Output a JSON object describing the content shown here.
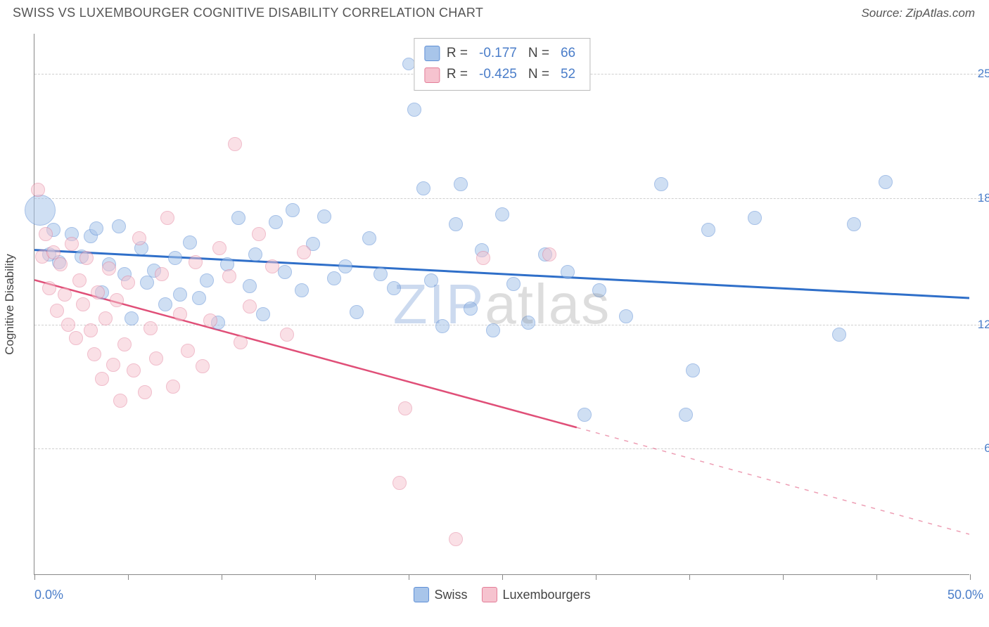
{
  "header": {
    "title": "SWISS VS LUXEMBOURGER COGNITIVE DISABILITY CORRELATION CHART",
    "source": "Source: ZipAtlas.com"
  },
  "watermark": {
    "part1": "ZIP",
    "part2": "atlas"
  },
  "chart": {
    "type": "scatter",
    "background_color": "#ffffff",
    "grid_color": "#cfcfcf",
    "axis_color": "#888888",
    "text_color": "#555555",
    "value_color": "#4a7dc9",
    "ylabel": "Cognitive Disability",
    "ylabel_fontsize": 17,
    "xlim": [
      0,
      50
    ],
    "ylim": [
      0,
      27
    ],
    "y_ticks": [
      {
        "value": 6.3,
        "label": "6.3%"
      },
      {
        "value": 12.5,
        "label": "12.5%"
      },
      {
        "value": 18.8,
        "label": "18.8%"
      },
      {
        "value": 25.0,
        "label": "25.0%"
      }
    ],
    "x_ticks_at": [
      0,
      5,
      10,
      15,
      20,
      25,
      30,
      35,
      40,
      45,
      50
    ],
    "x_label_min": "0.0%",
    "x_label_max": "50.0%",
    "legend_bottom": [
      {
        "label": "Swiss",
        "fill": "#a8c5ea",
        "stroke": "#5f8fd6"
      },
      {
        "label": "Luxembourgers",
        "fill": "#f6c3cf",
        "stroke": "#e37d98"
      }
    ],
    "legend_top": [
      {
        "fill": "#a8c5ea",
        "stroke": "#5f8fd6",
        "R_label": "R =",
        "R": "-0.177",
        "N_label": "N =",
        "N": "66"
      },
      {
        "fill": "#f6c3cf",
        "stroke": "#e37d98",
        "R_label": "R =",
        "R": "-0.425",
        "N_label": "N =",
        "N": "52"
      }
    ],
    "series": [
      {
        "name": "Swiss",
        "fill": "#a8c5ea",
        "fill_opacity": 0.55,
        "stroke": "#5f8fd6",
        "stroke_width": 1.5,
        "default_r": 10,
        "trend": {
          "x1": 0,
          "y1": 16.2,
          "x2": 50,
          "y2": 13.8,
          "color": "#2f6fc9",
          "width": 3,
          "solid_until_x": 50
        },
        "points": [
          {
            "x": 0.3,
            "y": 18.2,
            "r": 22
          },
          {
            "x": 0.8,
            "y": 16.0
          },
          {
            "x": 1.0,
            "y": 17.2
          },
          {
            "x": 1.3,
            "y": 15.6
          },
          {
            "x": 2.0,
            "y": 17.0
          },
          {
            "x": 2.5,
            "y": 15.9
          },
          {
            "x": 3.0,
            "y": 16.9
          },
          {
            "x": 3.3,
            "y": 17.3
          },
          {
            "x": 3.6,
            "y": 14.1
          },
          {
            "x": 4.0,
            "y": 15.5
          },
          {
            "x": 4.5,
            "y": 17.4
          },
          {
            "x": 4.8,
            "y": 15.0
          },
          {
            "x": 5.2,
            "y": 12.8
          },
          {
            "x": 5.7,
            "y": 16.3
          },
          {
            "x": 6.0,
            "y": 14.6
          },
          {
            "x": 6.4,
            "y": 15.2
          },
          {
            "x": 7.0,
            "y": 13.5
          },
          {
            "x": 7.5,
            "y": 15.8
          },
          {
            "x": 7.8,
            "y": 14.0
          },
          {
            "x": 8.3,
            "y": 16.6
          },
          {
            "x": 8.8,
            "y": 13.8
          },
          {
            "x": 9.2,
            "y": 14.7
          },
          {
            "x": 9.8,
            "y": 12.6
          },
          {
            "x": 10.3,
            "y": 15.5
          },
          {
            "x": 10.9,
            "y": 17.8
          },
          {
            "x": 11.5,
            "y": 14.4
          },
          {
            "x": 11.8,
            "y": 16.0
          },
          {
            "x": 12.2,
            "y": 13.0
          },
          {
            "x": 12.9,
            "y": 17.6
          },
          {
            "x": 13.4,
            "y": 15.1
          },
          {
            "x": 13.8,
            "y": 18.2
          },
          {
            "x": 14.3,
            "y": 14.2
          },
          {
            "x": 14.9,
            "y": 16.5
          },
          {
            "x": 15.5,
            "y": 17.9
          },
          {
            "x": 16.0,
            "y": 14.8
          },
          {
            "x": 16.6,
            "y": 15.4
          },
          {
            "x": 17.2,
            "y": 13.1
          },
          {
            "x": 17.9,
            "y": 16.8
          },
          {
            "x": 18.5,
            "y": 15.0
          },
          {
            "x": 19.2,
            "y": 14.3
          },
          {
            "x": 20.0,
            "y": 25.5,
            "r": 9
          },
          {
            "x": 20.3,
            "y": 23.2
          },
          {
            "x": 20.8,
            "y": 19.3
          },
          {
            "x": 21.2,
            "y": 14.7
          },
          {
            "x": 21.8,
            "y": 12.4
          },
          {
            "x": 22.5,
            "y": 17.5
          },
          {
            "x": 22.8,
            "y": 19.5
          },
          {
            "x": 23.3,
            "y": 13.3
          },
          {
            "x": 23.9,
            "y": 16.2
          },
          {
            "x": 24.5,
            "y": 12.2
          },
          {
            "x": 25.0,
            "y": 18.0
          },
          {
            "x": 25.6,
            "y": 14.5
          },
          {
            "x": 26.4,
            "y": 12.6
          },
          {
            "x": 27.3,
            "y": 16.0
          },
          {
            "x": 28.5,
            "y": 15.1
          },
          {
            "x": 29.4,
            "y": 8.0
          },
          {
            "x": 30.2,
            "y": 14.2
          },
          {
            "x": 31.6,
            "y": 12.9
          },
          {
            "x": 33.5,
            "y": 19.5
          },
          {
            "x": 34.8,
            "y": 8.0
          },
          {
            "x": 35.2,
            "y": 10.2
          },
          {
            "x": 36.0,
            "y": 17.2
          },
          {
            "x": 38.5,
            "y": 17.8
          },
          {
            "x": 43.0,
            "y": 12.0
          },
          {
            "x": 43.8,
            "y": 17.5
          },
          {
            "x": 45.5,
            "y": 19.6
          }
        ]
      },
      {
        "name": "Luxembourgers",
        "fill": "#f6c3cf",
        "fill_opacity": 0.5,
        "stroke": "#e37d98",
        "stroke_width": 1.5,
        "default_r": 10,
        "trend": {
          "x1": 0,
          "y1": 14.7,
          "x2": 50,
          "y2": 2.0,
          "color": "#e04f78",
          "width": 2.5,
          "solid_until_x": 29
        },
        "points": [
          {
            "x": 0.2,
            "y": 19.2
          },
          {
            "x": 0.4,
            "y": 15.9
          },
          {
            "x": 0.6,
            "y": 17.0
          },
          {
            "x": 0.8,
            "y": 14.3
          },
          {
            "x": 1.0,
            "y": 16.1
          },
          {
            "x": 1.2,
            "y": 13.2
          },
          {
            "x": 1.4,
            "y": 15.5
          },
          {
            "x": 1.6,
            "y": 14.0
          },
          {
            "x": 1.8,
            "y": 12.5
          },
          {
            "x": 2.0,
            "y": 16.5
          },
          {
            "x": 2.2,
            "y": 11.8
          },
          {
            "x": 2.4,
            "y": 14.7
          },
          {
            "x": 2.6,
            "y": 13.5
          },
          {
            "x": 2.8,
            "y": 15.8
          },
          {
            "x": 3.0,
            "y": 12.2
          },
          {
            "x": 3.2,
            "y": 11.0
          },
          {
            "x": 3.4,
            "y": 14.1
          },
          {
            "x": 3.6,
            "y": 9.8
          },
          {
            "x": 3.8,
            "y": 12.8
          },
          {
            "x": 4.0,
            "y": 15.3
          },
          {
            "x": 4.2,
            "y": 10.5
          },
          {
            "x": 4.4,
            "y": 13.7
          },
          {
            "x": 4.6,
            "y": 8.7
          },
          {
            "x": 4.8,
            "y": 11.5
          },
          {
            "x": 5.0,
            "y": 14.6
          },
          {
            "x": 5.3,
            "y": 10.2
          },
          {
            "x": 5.6,
            "y": 16.8
          },
          {
            "x": 5.9,
            "y": 9.1
          },
          {
            "x": 6.2,
            "y": 12.3
          },
          {
            "x": 6.5,
            "y": 10.8
          },
          {
            "x": 6.8,
            "y": 15.0
          },
          {
            "x": 7.1,
            "y": 17.8
          },
          {
            "x": 7.4,
            "y": 9.4
          },
          {
            "x": 7.8,
            "y": 13.0
          },
          {
            "x": 8.2,
            "y": 11.2
          },
          {
            "x": 8.6,
            "y": 15.6
          },
          {
            "x": 9.0,
            "y": 10.4
          },
          {
            "x": 9.4,
            "y": 12.7
          },
          {
            "x": 9.9,
            "y": 16.3
          },
          {
            "x": 10.4,
            "y": 14.9
          },
          {
            "x": 10.7,
            "y": 21.5
          },
          {
            "x": 11.0,
            "y": 11.6
          },
          {
            "x": 11.5,
            "y": 13.4
          },
          {
            "x": 12.0,
            "y": 17.0
          },
          {
            "x": 12.7,
            "y": 15.4
          },
          {
            "x": 13.5,
            "y": 12.0
          },
          {
            "x": 14.4,
            "y": 16.1
          },
          {
            "x": 19.5,
            "y": 4.6
          },
          {
            "x": 19.8,
            "y": 8.3
          },
          {
            "x": 22.5,
            "y": 1.8
          },
          {
            "x": 24.0,
            "y": 15.8
          },
          {
            "x": 27.5,
            "y": 16.0
          }
        ]
      }
    ]
  }
}
